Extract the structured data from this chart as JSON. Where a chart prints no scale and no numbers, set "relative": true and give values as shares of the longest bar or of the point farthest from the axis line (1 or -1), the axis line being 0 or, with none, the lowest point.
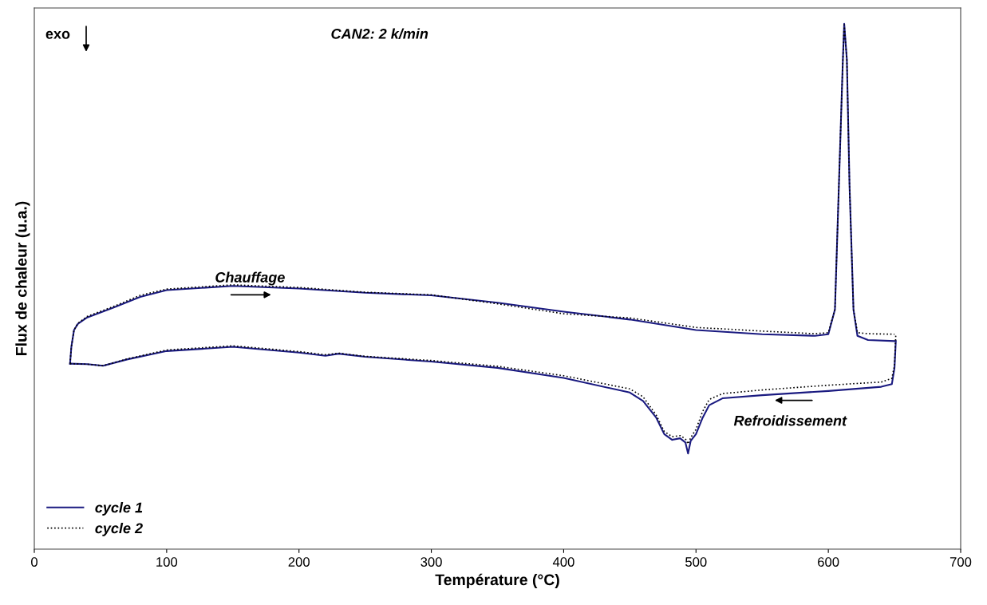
{
  "chart_data": {
    "type": "line",
    "relative": true,
    "xlabel": "Température (°C)",
    "ylabel": "Flux de chaleur (u.a.)",
    "xlim": [
      0,
      700
    ],
    "xticks": [
      0,
      100,
      200,
      300,
      400,
      500,
      600,
      700
    ],
    "tick_labels": "x",
    "grid": false,
    "legend": "bottom left",
    "annotations": [
      "exo",
      "CAN2: 2 k/min",
      "Chauffage",
      "Refroidissement"
    ],
    "series": [
      {
        "name": "cycle 1",
        "color": "#1a1a80",
        "line_style": "solid",
        "x": [
          27,
          28,
          30,
          33,
          40,
          60,
          80,
          100,
          150,
          200,
          250,
          300,
          350,
          400,
          450,
          500,
          550,
          590,
          600,
          605,
          608,
          611,
          612,
          614,
          616,
          619,
          622,
          630,
          650
        ],
        "values": [
          0.353,
          0.385,
          0.417,
          0.429,
          0.441,
          0.46,
          0.48,
          0.493,
          0.501,
          0.496,
          0.488,
          0.483,
          0.469,
          0.452,
          0.437,
          0.417,
          0.409,
          0.406,
          0.409,
          0.456,
          0.694,
          0.932,
          1.0,
          0.932,
          0.694,
          0.456,
          0.406,
          0.398,
          0.396
        ]
      },
      {
        "color": "#1a1a80",
        "line_style": "solid",
        "x": [
          27,
          40,
          52,
          70,
          100,
          150,
          200,
          220,
          230,
          250,
          300,
          350,
          400,
          450,
          460,
          470,
          476,
          482,
          488,
          492,
          494,
          496,
          500,
          505,
          510,
          520,
          550,
          600,
          640,
          648,
          650,
          651
        ],
        "values": [
          0.353,
          0.352,
          0.349,
          0.361,
          0.377,
          0.385,
          0.374,
          0.368,
          0.372,
          0.366,
          0.357,
          0.345,
          0.326,
          0.298,
          0.282,
          0.25,
          0.219,
          0.208,
          0.211,
          0.203,
          0.182,
          0.206,
          0.219,
          0.25,
          0.274,
          0.287,
          0.293,
          0.301,
          0.309,
          0.314,
          0.345,
          0.396
        ]
      },
      {
        "name": "cycle 2",
        "color": "#000000",
        "line_style": "dotted",
        "x": [
          27,
          28,
          30,
          33,
          40,
          60,
          80,
          100,
          150,
          200,
          250,
          300,
          350,
          400,
          450,
          500,
          550,
          590,
          600,
          605,
          608,
          611,
          612,
          614,
          616,
          619,
          622,
          630,
          650
        ],
        "values": [
          0.353,
          0.385,
          0.417,
          0.43,
          0.443,
          0.462,
          0.483,
          0.495,
          0.503,
          0.498,
          0.489,
          0.484,
          0.467,
          0.448,
          0.44,
          0.422,
          0.415,
          0.41,
          0.412,
          0.456,
          0.694,
          0.932,
          0.998,
          0.932,
          0.694,
          0.456,
          0.412,
          0.41,
          0.409
        ]
      },
      {
        "color": "#000000",
        "line_style": "dotted",
        "x": [
          27,
          40,
          52,
          70,
          100,
          150,
          200,
          220,
          230,
          250,
          300,
          350,
          400,
          450,
          460,
          470,
          476,
          482,
          488,
          492,
          494,
          496,
          500,
          505,
          510,
          520,
          550,
          600,
          640,
          648,
          650,
          651
        ],
        "values": [
          0.353,
          0.352,
          0.349,
          0.362,
          0.379,
          0.387,
          0.376,
          0.37,
          0.373,
          0.367,
          0.359,
          0.348,
          0.33,
          0.305,
          0.29,
          0.255,
          0.224,
          0.214,
          0.216,
          0.21,
          0.2,
          0.212,
          0.228,
          0.262,
          0.285,
          0.296,
          0.303,
          0.312,
          0.318,
          0.325,
          0.35,
          0.409
        ]
      }
    ]
  }
}
